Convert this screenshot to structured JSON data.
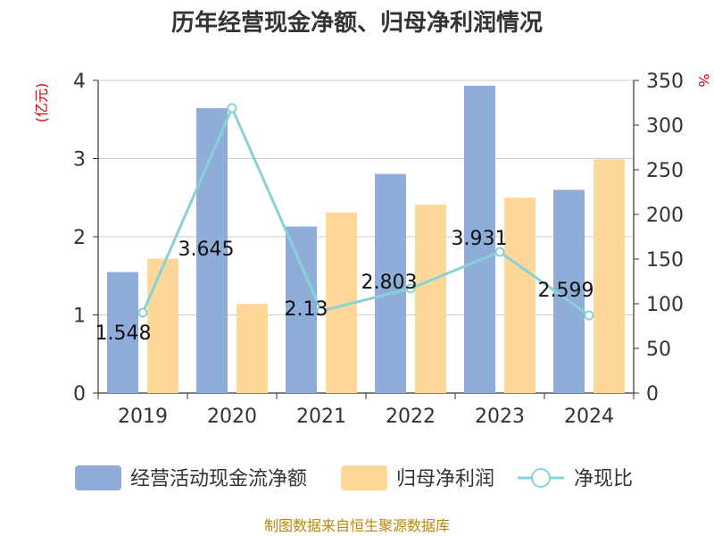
{
  "chart_data": {
    "type": "bar",
    "title": "历年经营现金净额、归母净利润情况",
    "categories": [
      "2019",
      "2020",
      "2021",
      "2022",
      "2023",
      "2024"
    ],
    "y_left": {
      "unit": "(亿元)",
      "ylim": [
        0,
        4
      ],
      "ticks": [
        "0",
        "1",
        "2",
        "3",
        "4"
      ]
    },
    "y_right": {
      "unit": "%",
      "ylim": [
        0,
        350
      ],
      "ticks": [
        "0",
        "50",
        "100",
        "150",
        "200",
        "250",
        "300",
        "350"
      ]
    },
    "series": [
      {
        "name": "经营活动现金流净额",
        "type": "bar",
        "axis": "left",
        "color": "#8eadd9",
        "values": [
          1.548,
          3.645,
          2.13,
          2.803,
          3.931,
          2.599
        ],
        "labels": [
          "1.548",
          "3.645",
          "2.13",
          "2.803",
          "3.931",
          "2.599"
        ]
      },
      {
        "name": "归母净利润",
        "type": "bar",
        "axis": "left",
        "color": "#fdd899",
        "values": [
          1.72,
          1.14,
          2.31,
          2.41,
          2.5,
          2.99
        ]
      },
      {
        "name": "净现比",
        "type": "line",
        "axis": "right",
        "color": "#88d1d8",
        "values": [
          90,
          319,
          92,
          117,
          158,
          87
        ]
      }
    ],
    "grid": true,
    "legend": "bottom"
  },
  "source": "制图数据来自恒生聚源数据库"
}
